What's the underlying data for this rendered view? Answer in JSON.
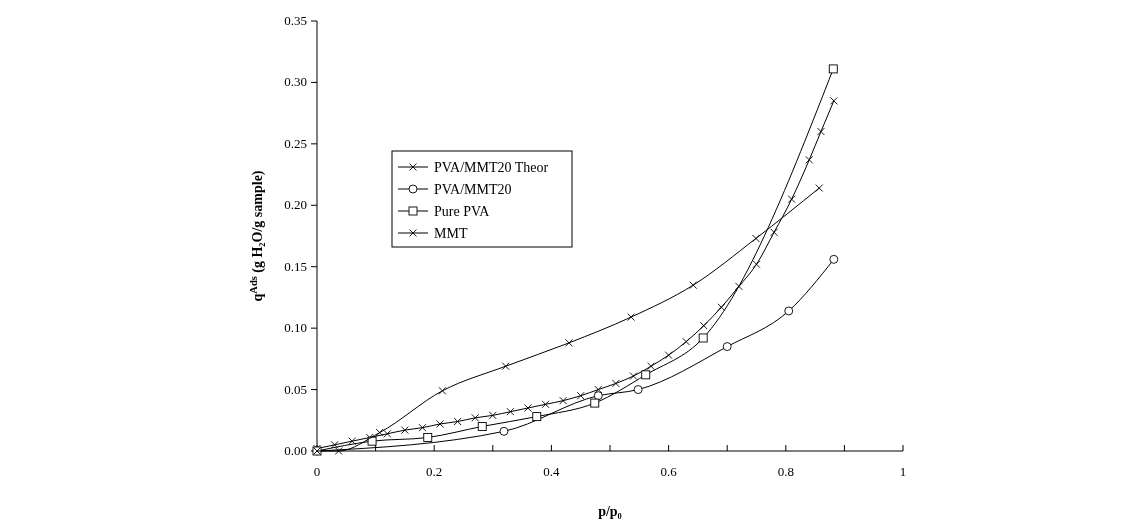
{
  "chart_data": {
    "type": "line",
    "xlabel": "p/p₀",
    "ylabel": "q$^{Ads}$ (g H₂O/g sample)",
    "xlim": [
      0,
      1
    ],
    "ylim": [
      0,
      0.35
    ],
    "xticks": [
      0,
      {
        "value": 0.1,
        "label": null
      },
      0.2,
      {
        "value": 0.3,
        "label": null
      },
      0.4,
      {
        "value": 0.5,
        "label": null
      },
      0.6,
      {
        "value": 0.7,
        "label": null
      },
      0.8,
      {
        "value": 0.9,
        "label": null
      },
      1
    ],
    "yticks": [
      {
        "value": 0,
        "label": "0.00"
      },
      {
        "value": 0.05,
        "label": "0.05"
      },
      {
        "value": 0.1,
        "label": "0.10"
      },
      {
        "value": 0.15,
        "label": "0.15"
      },
      {
        "value": 0.2,
        "label": "0.20"
      },
      {
        "value": 0.25,
        "label": "0.25"
      },
      {
        "value": 0.3,
        "label": "0.30"
      },
      {
        "value": 0.35,
        "label": "0.35"
      }
    ],
    "grid": false,
    "legend": "top left",
    "line_style": "solid",
    "series": [
      {
        "name": "PVA/MMT20 Theor",
        "color": "#000000",
        "marker": "cross",
        "x": [
          0,
          0.03,
          0.06,
          0.09,
          0.12,
          0.15,
          0.18,
          0.21,
          0.24,
          0.27,
          0.3,
          0.33,
          0.36,
          0.39,
          0.42,
          0.45,
          0.48,
          0.51,
          0.54,
          0.57,
          0.6,
          0.63,
          0.66,
          0.69,
          0.72,
          0.75,
          0.78,
          0.81,
          0.84,
          0.86,
          0.882
        ],
        "values": [
          0.002,
          0.005,
          0.008,
          0.011,
          0.014,
          0.017,
          0.019,
          0.022,
          0.024,
          0.027,
          0.029,
          0.032,
          0.035,
          0.038,
          0.041,
          0.045,
          0.05,
          0.055,
          0.061,
          0.069,
          0.078,
          0.089,
          0.102,
          0.117,
          0.134,
          0.152,
          0.178,
          0.205,
          0.237,
          0.26,
          0.285
        ]
      },
      {
        "name": "PVA/MMT20",
        "color": "#000000",
        "marker": "circle",
        "x": [
          0,
          0.319,
          0.48,
          0.548,
          0.7,
          0.805,
          0.882
        ],
        "values": [
          0,
          0.016,
          0.045,
          0.05,
          0.085,
          0.114,
          0.156
        ]
      },
      {
        "name": "Pure PVA",
        "color": "#000000",
        "marker": "square",
        "x": [
          0,
          0.094,
          0.189,
          0.282,
          0.375,
          0.474,
          0.561,
          0.659,
          0.881
        ],
        "values": [
          0,
          0.008,
          0.011,
          0.02,
          0.028,
          0.039,
          0.062,
          0.092,
          0.311
        ]
      },
      {
        "name": "MMT",
        "color": "#000000",
        "marker": "cross",
        "x": [
          0,
          0.037,
          0.107,
          0.214,
          0.322,
          0.43,
          0.536,
          0.642,
          0.749,
          0.857
        ],
        "values": [
          0,
          0,
          0.015,
          0.049,
          0.069,
          0.088,
          0.109,
          0.135,
          0.173,
          0.214
        ]
      }
    ]
  }
}
